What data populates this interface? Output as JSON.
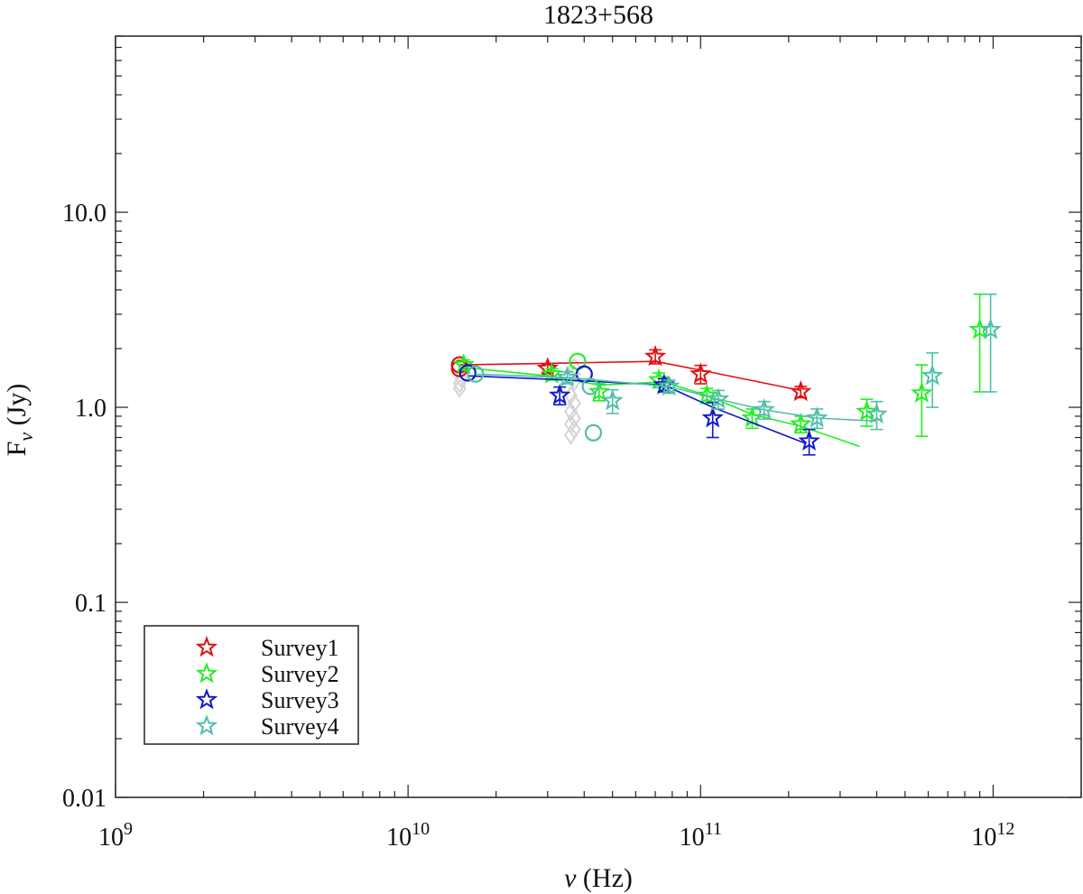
{
  "chart_data": {
    "type": "scatter",
    "title": "1823+568",
    "xlabel": "ν (Hz)",
    "ylabel": "F_ν (Jy)",
    "xscale": "log",
    "yscale": "log",
    "xlim": [
      1000000000.0,
      2000000000000.0
    ],
    "ylim": [
      0.01,
      80
    ],
    "x_ticks": [
      {
        "value": 1000000000.0,
        "base": "10",
        "exp": "9"
      },
      {
        "value": 10000000000.0,
        "base": "10",
        "exp": "10"
      },
      {
        "value": 100000000000.0,
        "base": "10",
        "exp": "11"
      },
      {
        "value": 1000000000000.0,
        "base": "10",
        "exp": "12"
      }
    ],
    "y_ticks": [
      {
        "value": 0.01,
        "label": "0.01"
      },
      {
        "value": 0.1,
        "label": "0.1"
      },
      {
        "value": 1.0,
        "label": "1.0"
      },
      {
        "value": 10.0,
        "label": "10.0"
      }
    ],
    "legend_position": "bottom-left",
    "series": [
      {
        "name": "Survey1",
        "color": "#e01010",
        "line": [
          [
            15000000000.0,
            1.65
          ],
          [
            30000000000.0,
            1.68
          ],
          [
            70000000000.0,
            1.72
          ],
          [
            100000000000.0,
            1.55
          ],
          [
            220000000000.0,
            1.22
          ]
        ],
        "stars": [
          [
            30000000000.0,
            1.58,
            0.08
          ],
          [
            70000000000.0,
            1.82,
            0.15
          ],
          [
            100000000000.0,
            1.48,
            0.16
          ],
          [
            220000000000.0,
            1.2,
            0.08
          ]
        ],
        "circles": [
          [
            15000000000.0,
            1.65
          ],
          [
            15000000000.0,
            1.58
          ]
        ]
      },
      {
        "name": "Survey2",
        "color": "#22ee22",
        "line": [
          [
            15500000000.0,
            1.6
          ],
          [
            30000000000.0,
            1.45
          ],
          [
            45000000000.0,
            1.3
          ],
          [
            75000000000.0,
            1.35
          ],
          [
            105000000000.0,
            1.15
          ],
          [
            150000000000.0,
            0.92
          ],
          [
            220000000000.0,
            0.8
          ],
          [
            350000000000.0,
            0.63
          ]
        ],
        "stars": [
          [
            15500000000.0,
            1.65,
            0.1
          ],
          [
            31000000000.0,
            1.48,
            0.1
          ],
          [
            45000000000.0,
            1.2,
            0.12
          ],
          [
            72000000000.0,
            1.38,
            0.12
          ],
          [
            105000000000.0,
            1.15,
            0.1
          ],
          [
            150000000000.0,
            0.88,
            0.1
          ],
          [
            220000000000.0,
            0.82,
            0.08
          ],
          [
            370000000000.0,
            0.95,
            0.15
          ],
          [
            570000000000.0,
            1.18,
            0.47
          ],
          [
            900000000000.0,
            2.5,
            1.3
          ]
        ],
        "circles": [
          [
            38000000000.0,
            1.72
          ]
        ]
      },
      {
        "name": "Survey3",
        "color": "#1018c8",
        "line": [
          [
            16000000000.0,
            1.45
          ],
          [
            35000000000.0,
            1.38
          ],
          [
            75000000000.0,
            1.3
          ],
          [
            110000000000.0,
            1.0
          ],
          [
            230000000000.0,
            0.65
          ]
        ],
        "stars": [
          [
            33000000000.0,
            1.15,
            0.12
          ],
          [
            75000000000.0,
            1.3,
            0.1
          ],
          [
            110000000000.0,
            0.88,
            0.18
          ],
          [
            235000000000.0,
            0.67,
            0.1
          ]
        ],
        "circles": [
          [
            16000000000.0,
            1.5
          ],
          [
            40000000000.0,
            1.48
          ]
        ]
      },
      {
        "name": "Survey4",
        "color": "#4fc0a8",
        "line": [
          [
            17000000000.0,
            1.48
          ],
          [
            35000000000.0,
            1.42
          ],
          [
            78000000000.0,
            1.28
          ],
          [
            115000000000.0,
            1.1
          ],
          [
            165000000000.0,
            0.97
          ],
          [
            250000000000.0,
            0.88
          ],
          [
            400000000000.0,
            0.85
          ]
        ],
        "stars": [
          [
            35000000000.0,
            1.42,
            0.1
          ],
          [
            50000000000.0,
            1.08,
            0.15
          ],
          [
            78000000000.0,
            1.28,
            0.1
          ],
          [
            115000000000.0,
            1.1,
            0.12
          ],
          [
            165000000000.0,
            0.97,
            0.1
          ],
          [
            250000000000.0,
            0.88,
            0.1
          ],
          [
            400000000000.0,
            0.92,
            0.15
          ],
          [
            620000000000.0,
            1.45,
            0.45
          ],
          [
            980000000000.0,
            2.5,
            1.3
          ]
        ],
        "circles": [
          [
            17000000000.0,
            1.48
          ],
          [
            42000000000.0,
            1.28
          ],
          [
            43000000000.0,
            0.74
          ]
        ]
      }
    ],
    "background_points": {
      "color": "#d4d4d4",
      "points": [
        [
          15000000000.0,
          1.32
        ],
        [
          15000000000.0,
          1.25
        ],
        [
          15200000000.0,
          1.4
        ],
        [
          37000000000.0,
          1.6
        ],
        [
          37000000000.0,
          1.48
        ],
        [
          37000000000.0,
          1.35
        ],
        [
          36000000000.0,
          1.15
        ],
        [
          37000000000.0,
          1.05
        ],
        [
          36000000000.0,
          0.95
        ],
        [
          37000000000.0,
          0.88
        ],
        [
          36000000000.0,
          0.82
        ],
        [
          37000000000.0,
          0.77
        ],
        [
          36000000000.0,
          0.72
        ]
      ]
    }
  }
}
